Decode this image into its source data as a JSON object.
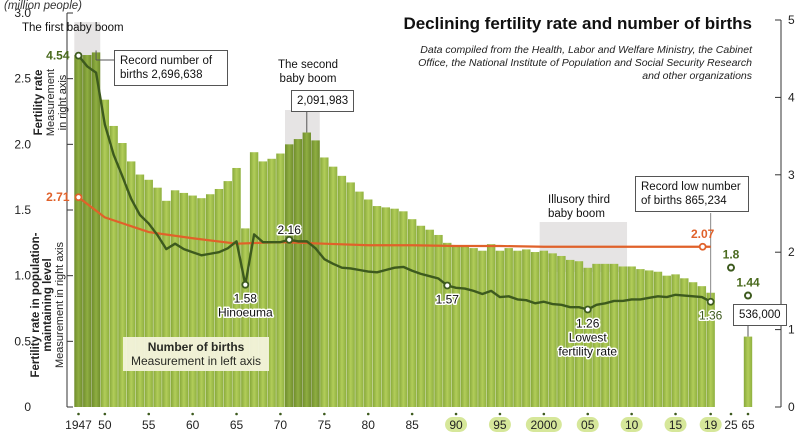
{
  "chart_data": {
    "type": "bar",
    "title": "Declining fertility rate and number of births",
    "subtitle": "Data compiled from the Health, Labor and Welfare Ministry, the Cabinet Office, the National Institute of Population and Social Security Research and other organizations",
    "left_axis": {
      "unit_label": "(million people)",
      "ticks": [
        "0",
        "0.5",
        "1.0",
        "1.5",
        "2.0",
        "2.5",
        "3.0"
      ],
      "range": [
        0,
        3.0
      ]
    },
    "right_axis": {
      "ticks": [
        "0",
        "1",
        "2",
        "3",
        "4",
        "5"
      ],
      "range": [
        0,
        5
      ]
    },
    "x_tick_labels": [
      {
        "year": 1947,
        "label": "1947",
        "highlight": false
      },
      {
        "year": 1950,
        "label": "50",
        "highlight": false
      },
      {
        "year": 1955,
        "label": "55",
        "highlight": false
      },
      {
        "year": 1960,
        "label": "60",
        "highlight": false
      },
      {
        "year": 1965,
        "label": "65",
        "highlight": false
      },
      {
        "year": 1970,
        "label": "70",
        "highlight": false
      },
      {
        "year": 1975,
        "label": "75",
        "highlight": false
      },
      {
        "year": 1980,
        "label": "80",
        "highlight": false
      },
      {
        "year": 1985,
        "label": "85",
        "highlight": false
      },
      {
        "year": 1990,
        "label": "90",
        "highlight": true
      },
      {
        "year": 1995,
        "label": "95",
        "highlight": true
      },
      {
        "year": 2000,
        "label": "2000",
        "highlight": true
      },
      {
        "year": 2005,
        "label": "05",
        "highlight": true
      },
      {
        "year": 2010,
        "label": "10",
        "highlight": true
      },
      {
        "year": 2015,
        "label": "15",
        "highlight": true
      },
      {
        "year": 2019,
        "label": "19",
        "highlight": true
      },
      {
        "year": 2025,
        "label": "25",
        "highlight": false
      },
      {
        "year": 2065,
        "label": "65",
        "highlight": false
      }
    ],
    "births": {
      "name": "Number of births",
      "axis_note": "Measurement in left axis",
      "years": [
        1947,
        1948,
        1949,
        1950,
        1951,
        1952,
        1953,
        1954,
        1955,
        1956,
        1957,
        1958,
        1959,
        1960,
        1961,
        1962,
        1963,
        1964,
        1965,
        1966,
        1967,
        1968,
        1969,
        1970,
        1971,
        1972,
        1973,
        1974,
        1975,
        1976,
        1977,
        1978,
        1979,
        1980,
        1981,
        1982,
        1983,
        1984,
        1985,
        1986,
        1987,
        1988,
        1989,
        1990,
        1991,
        1992,
        1993,
        1994,
        1995,
        1996,
        1997,
        1998,
        1999,
        2000,
        2001,
        2002,
        2003,
        2004,
        2005,
        2006,
        2007,
        2008,
        2009,
        2010,
        2011,
        2012,
        2013,
        2014,
        2015,
        2016,
        2017,
        2018,
        2019
      ],
      "values": [
        2.68,
        2.68,
        2.7,
        2.34,
        2.14,
        2.01,
        1.87,
        1.77,
        1.73,
        1.67,
        1.57,
        1.65,
        1.63,
        1.61,
        1.59,
        1.62,
        1.66,
        1.72,
        1.82,
        1.36,
        1.94,
        1.87,
        1.89,
        1.93,
        2.0,
        2.04,
        2.09,
        2.03,
        1.9,
        1.83,
        1.76,
        1.71,
        1.64,
        1.58,
        1.53,
        1.52,
        1.51,
        1.49,
        1.43,
        1.38,
        1.35,
        1.31,
        1.25,
        1.22,
        1.22,
        1.21,
        1.19,
        1.24,
        1.19,
        1.21,
        1.19,
        1.2,
        1.18,
        1.19,
        1.17,
        1.15,
        1.12,
        1.11,
        1.06,
        1.09,
        1.09,
        1.09,
        1.07,
        1.07,
        1.05,
        1.04,
        1.03,
        1.0,
        1.01,
        0.98,
        0.95,
        0.92,
        0.87
      ],
      "projection": {
        "year": 2065,
        "value": 0.536
      }
    },
    "fertility_rate": {
      "name": "Fertility rate",
      "axis_note": "Measurement in right axis",
      "years": [
        1947,
        1948,
        1949,
        1950,
        1951,
        1952,
        1953,
        1954,
        1955,
        1956,
        1957,
        1958,
        1959,
        1960,
        1961,
        1962,
        1963,
        1964,
        1965,
        1966,
        1967,
        1968,
        1969,
        1970,
        1971,
        1972,
        1973,
        1974,
        1975,
        1976,
        1977,
        1978,
        1979,
        1980,
        1981,
        1982,
        1983,
        1984,
        1985,
        1986,
        1987,
        1988,
        1989,
        1990,
        1991,
        1992,
        1993,
        1994,
        1995,
        1996,
        1997,
        1998,
        1999,
        2000,
        2001,
        2002,
        2003,
        2004,
        2005,
        2006,
        2007,
        2008,
        2009,
        2010,
        2011,
        2012,
        2013,
        2014,
        2015,
        2016,
        2017,
        2018,
        2019
      ],
      "values": [
        4.54,
        4.4,
        4.32,
        3.65,
        3.26,
        2.98,
        2.69,
        2.48,
        2.37,
        2.22,
        2.04,
        2.11,
        2.04,
        2.0,
        1.96,
        1.98,
        2.0,
        2.05,
        2.14,
        1.58,
        2.23,
        2.13,
        2.13,
        2.13,
        2.16,
        2.14,
        2.14,
        2.05,
        1.91,
        1.85,
        1.8,
        1.79,
        1.77,
        1.75,
        1.74,
        1.77,
        1.8,
        1.81,
        1.76,
        1.72,
        1.69,
        1.66,
        1.57,
        1.54,
        1.53,
        1.5,
        1.46,
        1.5,
        1.42,
        1.43,
        1.39,
        1.38,
        1.34,
        1.36,
        1.33,
        1.32,
        1.29,
        1.29,
        1.26,
        1.32,
        1.34,
        1.37,
        1.37,
        1.39,
        1.39,
        1.41,
        1.43,
        1.42,
        1.45,
        1.44,
        1.43,
        1.42,
        1.36
      ],
      "projections": [
        {
          "year": 2025,
          "value": 1.8
        },
        {
          "year": 2065,
          "value": 1.44
        }
      ]
    },
    "replacement_level": {
      "name": "Fertility rate in population-maintaining level",
      "axis_note": "Measurement in right axis",
      "years": [
        1947,
        1950,
        1955,
        1960,
        1965,
        1970,
        1975,
        1980,
        1985,
        1990,
        1995,
        2000,
        2005,
        2010,
        2015,
        2019
      ],
      "values": [
        2.71,
        2.45,
        2.26,
        2.18,
        2.11,
        2.13,
        2.11,
        2.09,
        2.09,
        2.08,
        2.08,
        2.07,
        2.07,
        2.07,
        2.07,
        2.07
      ]
    },
    "annotations": {
      "first_baby_boom": "The first baby boom",
      "record_births": "Record number of births 2,696,638",
      "second_baby_boom": "The second baby boom",
      "second_peak": "2,091,983",
      "third_baby_boom": "Illusory third baby boom",
      "record_low": "Record low number of births 865,234",
      "projection_births": "536,000",
      "hinoeuma_value": "1.58",
      "hinoeuma_label": "Hinoeuma",
      "rate_1971": "2.16",
      "rate_1989": "1.57",
      "rate_2005": "1.26",
      "lowest_label": "Lowest fertility rate",
      "rate_2019": "1.36",
      "rate_1947": "4.54",
      "replacement_1947": "2.71",
      "replacement_2019": "2.07",
      "proj_2025": "1.8",
      "proj_2065": "1.44"
    },
    "legend": {
      "fertility_title": "Fertility rate",
      "fertility_sub": "Measurement in right axis",
      "replacement_title": "Fertility rate in population-maintaining level",
      "replacement_sub": "Measurement in right axis",
      "births_title": "Number of births",
      "births_sub": "Measurement in left axis"
    },
    "colors": {
      "bar": "#9fc046",
      "bar_dark": "#7a9a30",
      "fertility_line": "#3d5a1e",
      "replacement_line": "#e0612a",
      "boom_shade": "#e6e4e4"
    }
  }
}
